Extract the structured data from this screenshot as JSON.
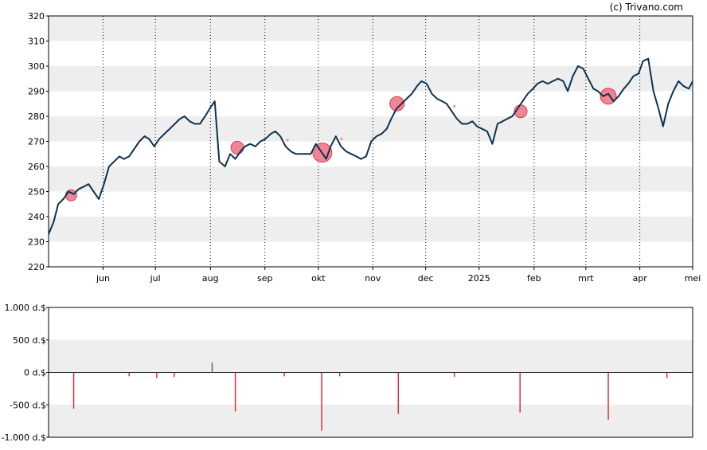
{
  "copyright": "(c) Trivano.com",
  "chart_data": [
    {
      "type": "line",
      "name": "price",
      "ylim": [
        220,
        320
      ],
      "yticks": [
        220,
        230,
        240,
        250,
        260,
        270,
        280,
        290,
        300,
        310,
        320
      ],
      "xlim": [
        0,
        100
      ],
      "months": [
        {
          "label": "jun",
          "x": 9.9
        },
        {
          "label": "jul",
          "x": 19.4
        },
        {
          "label": "aug",
          "x": 29.4
        },
        {
          "label": "sep",
          "x": 39.3
        },
        {
          "label": "okt",
          "x": 49.0
        },
        {
          "label": "nov",
          "x": 58.9
        },
        {
          "label": "dec",
          "x": 68.5
        },
        {
          "label": "2025",
          "x": 78.2
        },
        {
          "label": "feb",
          "x": 88.2
        },
        {
          "label": "mrt",
          "x": 97.6
        },
        {
          "label": "apr",
          "x": 107.4
        },
        {
          "label": "mei",
          "x": 117.0
        }
      ],
      "line_color": "#0d3352",
      "points": [
        [
          0,
          233
        ],
        [
          0.8,
          238
        ],
        [
          1.5,
          245
        ],
        [
          2.3,
          247
        ],
        [
          3.1,
          250
        ],
        [
          3.9,
          249
        ],
        [
          4.7,
          251
        ],
        [
          5.5,
          252
        ],
        [
          6.2,
          253
        ],
        [
          7.0,
          250
        ],
        [
          7.8,
          247
        ],
        [
          8.6,
          253
        ],
        [
          9.4,
          260
        ],
        [
          10.2,
          262
        ],
        [
          11.0,
          264
        ],
        [
          11.7,
          263
        ],
        [
          12.5,
          264
        ],
        [
          13.3,
          267
        ],
        [
          14.1,
          270
        ],
        [
          14.9,
          272
        ],
        [
          15.6,
          271
        ],
        [
          16.4,
          268
        ],
        [
          17.2,
          271
        ],
        [
          18.0,
          273
        ],
        [
          18.8,
          275
        ],
        [
          19.6,
          277
        ],
        [
          20.4,
          279
        ],
        [
          21.1,
          280
        ],
        [
          21.9,
          278
        ],
        [
          22.7,
          277
        ],
        [
          23.5,
          277
        ],
        [
          24.3,
          280
        ],
        [
          25.0,
          283
        ],
        [
          25.8,
          286
        ],
        [
          26.5,
          262
        ],
        [
          27.4,
          260
        ],
        [
          28.2,
          265
        ],
        [
          29.0,
          263
        ],
        [
          29.8,
          266
        ],
        [
          30.5,
          268
        ],
        [
          31.3,
          269
        ],
        [
          32.1,
          268
        ],
        [
          32.9,
          270
        ],
        [
          33.7,
          271
        ],
        [
          34.5,
          273
        ],
        [
          35.2,
          274
        ],
        [
          36.0,
          272
        ],
        [
          36.8,
          268
        ],
        [
          37.6,
          266
        ],
        [
          38.4,
          265
        ],
        [
          39.2,
          265
        ],
        [
          39.9,
          265
        ],
        [
          40.7,
          265
        ],
        [
          41.5,
          269
        ],
        [
          42.3,
          266
        ],
        [
          43.1,
          263
        ],
        [
          43.8,
          268
        ],
        [
          44.6,
          272
        ],
        [
          45.4,
          268
        ],
        [
          46.2,
          266
        ],
        [
          47.0,
          265
        ],
        [
          47.8,
          264
        ],
        [
          48.5,
          263
        ],
        [
          49.3,
          264
        ],
        [
          50.1,
          270
        ],
        [
          50.9,
          272
        ],
        [
          51.7,
          273
        ],
        [
          52.5,
          275
        ],
        [
          53.2,
          279
        ],
        [
          54.0,
          283
        ],
        [
          54.8,
          285
        ],
        [
          55.6,
          287
        ],
        [
          56.4,
          289
        ],
        [
          57.2,
          292
        ],
        [
          57.9,
          294
        ],
        [
          58.7,
          293
        ],
        [
          59.5,
          289
        ],
        [
          60.3,
          287
        ],
        [
          61.1,
          286
        ],
        [
          61.8,
          285
        ],
        [
          62.6,
          282
        ],
        [
          63.4,
          279
        ],
        [
          64.2,
          277
        ],
        [
          65.0,
          277
        ],
        [
          65.8,
          278
        ],
        [
          66.5,
          276
        ],
        [
          67.3,
          275
        ],
        [
          68.1,
          274
        ],
        [
          68.9,
          269
        ],
        [
          69.7,
          277
        ],
        [
          70.5,
          278
        ],
        [
          71.2,
          279
        ],
        [
          72.0,
          280
        ],
        [
          72.8,
          283
        ],
        [
          73.6,
          286
        ],
        [
          74.4,
          289
        ],
        [
          75.2,
          291
        ],
        [
          75.9,
          293
        ],
        [
          76.7,
          294
        ],
        [
          77.5,
          293
        ],
        [
          78.3,
          294
        ],
        [
          79.1,
          295
        ],
        [
          79.9,
          294
        ],
        [
          80.6,
          290
        ],
        [
          81.4,
          296
        ],
        [
          82.2,
          300
        ],
        [
          83.0,
          299
        ],
        [
          83.8,
          295
        ],
        [
          84.6,
          291
        ],
        [
          85.3,
          290
        ],
        [
          86.1,
          288
        ],
        [
          86.9,
          289
        ],
        [
          87.7,
          286
        ],
        [
          88.5,
          288
        ],
        [
          89.3,
          291
        ],
        [
          90.0,
          293
        ],
        [
          90.8,
          296
        ],
        [
          91.6,
          297
        ],
        [
          92.3,
          302
        ],
        [
          93.1,
          303
        ],
        [
          93.9,
          290
        ],
        [
          94.7,
          283
        ],
        [
          95.4,
          276
        ],
        [
          96.2,
          285
        ],
        [
          97.0,
          290
        ],
        [
          97.8,
          294
        ],
        [
          98.6,
          292
        ],
        [
          99.4,
          291
        ],
        [
          100,
          294
        ]
      ],
      "markers": [
        {
          "x": 3.5,
          "y": 248.5,
          "r": 7
        },
        {
          "x": 15.0,
          "y": 272.0,
          "r": 1.5
        },
        {
          "x": 29.3,
          "y": 267.5,
          "r": 8
        },
        {
          "x": 37.1,
          "y": 270.5,
          "r": 1.5
        },
        {
          "x": 42.5,
          "y": 265.5,
          "r": 12
        },
        {
          "x": 45.5,
          "y": 271.0,
          "r": 1.5
        },
        {
          "x": 54.1,
          "y": 285.0,
          "r": 9
        },
        {
          "x": 63.0,
          "y": 284.0,
          "r": 1.5
        },
        {
          "x": 73.3,
          "y": 282.0,
          "r": 8
        },
        {
          "x": 86.9,
          "y": 288.0,
          "r": 10
        }
      ],
      "marker_color": "#f07080"
    },
    {
      "type": "bar",
      "name": "insider-transactions",
      "ylim": [
        -1000,
        1000
      ],
      "ytick_values": [
        -1000,
        -500,
        0,
        500,
        1000
      ],
      "ytick_labels": [
        "-1.000 d.$",
        "-500 d.$",
        "0 d.$",
        "500 d.$",
        "1.000 d.$"
      ],
      "xlim": [
        0,
        100
      ],
      "pos_color": "#2e8b3a",
      "neg_color": "#e0303c",
      "bars": [
        {
          "x": 3.9,
          "value": -560
        },
        {
          "x": 12.5,
          "value": -60
        },
        {
          "x": 16.8,
          "value": -90
        },
        {
          "x": 19.5,
          "value": -75
        },
        {
          "x": 25.4,
          "value": 150
        },
        {
          "x": 29.0,
          "value": -600
        },
        {
          "x": 36.6,
          "value": -60
        },
        {
          "x": 42.4,
          "value": -900
        },
        {
          "x": 45.2,
          "value": -60
        },
        {
          "x": 54.3,
          "value": -640
        },
        {
          "x": 63.0,
          "value": -70
        },
        {
          "x": 73.2,
          "value": -620
        },
        {
          "x": 86.9,
          "value": -730
        },
        {
          "x": 96.0,
          "value": -90
        }
      ]
    }
  ]
}
